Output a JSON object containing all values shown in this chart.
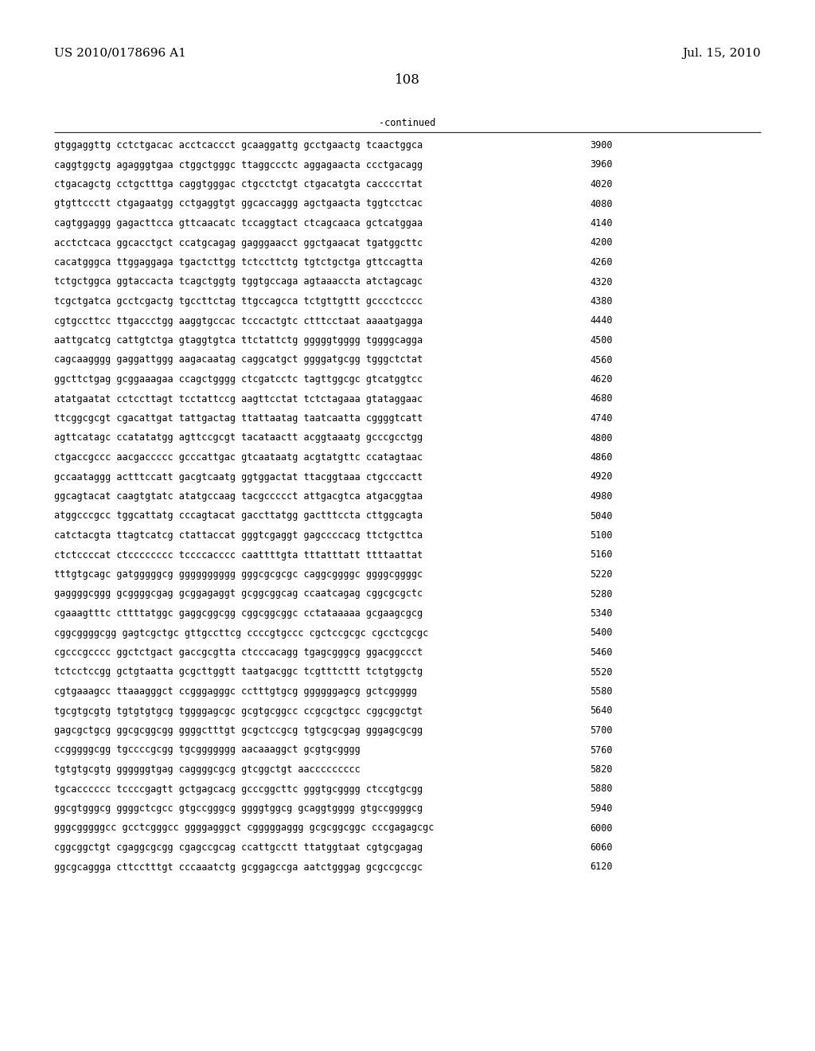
{
  "left_header": "US 2010/0178696 A1",
  "right_header": "Jul. 15, 2010",
  "page_number": "108",
  "continued_label": "-continued",
  "background_color": "#ffffff",
  "text_color": "#000000",
  "font_size_header": 11,
  "font_size_body": 8.5,
  "font_size_page": 12,
  "sequence_lines": [
    [
      "gtggaggttg cctctgacac acctcaccct gcaaggattg gcctgaactg tcaactggca",
      "3900"
    ],
    [
      "caggtggctg agagggtgaa ctggctgggc ttaggccctc aggagaacta ccctgacagg",
      "3960"
    ],
    [
      "ctgacagctg cctgctttga caggtgggac ctgcctctgt ctgacatgta caccccтtat",
      "4020"
    ],
    [
      "gtgttccctt ctgagaatgg cctgaggtgt ggcaccaggg agctgaacta tggtcctcac",
      "4080"
    ],
    [
      "cagtggaggg gagacttcca gttcaacatc tccaggtact ctcagcaaca gctcatggaa",
      "4140"
    ],
    [
      "acctctcaca ggcacctgct ccatgcagag gagggaacct ggctgaacat tgatggcttc",
      "4200"
    ],
    [
      "cacatgggca ttggaggaga tgactcttgg tctccttctg tgtctgctga gttccagtta",
      "4260"
    ],
    [
      "tctgctggca ggtaccacta tcagctggtg tggtgccaga agtaaaccta atctagcagc",
      "4320"
    ],
    [
      "tcgctgatca gcctcgactg tgccttctag ttgccagcca tctgttgttt gcccctcccc",
      "4380"
    ],
    [
      "cgtgccttcc ttgaccctgg aaggtgccac tcccactgtc ctttcctaat aaaatgagga",
      "4440"
    ],
    [
      "aattgcatcg cattgtctga gtaggtgtca ttctattctg gggggtgggg tggggcagga",
      "4500"
    ],
    [
      "cagcaagggg gaggattggg aagacaatag caggcatgct ggggatgcgg tgggctctat",
      "4560"
    ],
    [
      "ggcttctgag gcggaaagaa ccagctgggg ctcgatcctc tagttggcgc gtcatggtcc",
      "4620"
    ],
    [
      "atatgaatat cctccttagt tcctattccg aagttcctat tctctagaaa gtataggaac",
      "4680"
    ],
    [
      "ttcggcgcgt cgacattgat tattgactag ttattaatag taatcaatta cggggtcatt",
      "4740"
    ],
    [
      "agttcatagc ccatatatgg agttccgcgt tacataactt acggtaaatg gcccgcctgg",
      "4800"
    ],
    [
      "ctgaccgccc aacgaccccc gcccattgac gtcaataatg acgtatgttc ccatagtaac",
      "4860"
    ],
    [
      "gccaataggg actttccatt gacgtcaatg ggtggactat ttacggtaaa ctgcccactt",
      "4920"
    ],
    [
      "ggcagtacat caagtgtatc atatgccaag tacgccccct attgacgtca atgacggtaa",
      "4980"
    ],
    [
      "atggcccgcc tggcattatg cccagtacat gaccttatgg gactttccta cttggcagta",
      "5040"
    ],
    [
      "catctacgta ttagtcatcg ctattaccat gggtcgaggt gagccccacg ttctgcttca",
      "5100"
    ],
    [
      "ctctccccat ctcccccccc tccccacccc caattttgta tttatttatt ttttaattat",
      "5160"
    ],
    [
      "tttgtgcagc gatgggggcg gggggggggg gggcgcgcgc caggcggggc ggggcggggc",
      "5220"
    ],
    [
      "gaggggcggg gcggggcgag gcggagaggt gcggcggcag ccaatcagag cggcgcgctc",
      "5280"
    ],
    [
      "cgaaagtttc cttttatggc gaggcggcgg cggcggcggc cctataaaaa gcgaagcgcg",
      "5340"
    ],
    [
      "cggcggggcgg gagtcgctgc gttgccttcg ccccgtgccc cgctccgcgc cgcctcgcgc",
      "5400"
    ],
    [
      "cgcccgcccc ggctctgact gaccgcgtta ctcccacagg tgagcgggcg ggacggccct",
      "5460"
    ],
    [
      "tctcctccgg gctgtaatta gcgcttggtt taatgacggc tcgtttcttt tctgtggctg",
      "5520"
    ],
    [
      "cgtgaaagcc ttaaagggct ccgggagggc cctttgtgcg ggggggagcg gctcggggg",
      "5580"
    ],
    [
      "tgcgtgcgtg tgtgtgtgcg tggggagcgc gcgtgcggcc ccgcgctgcc cggcggctgt",
      "5640"
    ],
    [
      "gagcgctgcg ggcgcggcgg ggggctttgt gcgctccgcg tgtgcgcgag gggagcgcgg",
      "5700"
    ],
    [
      "ccgggggcgg tgccccgcgg tgcggggggg aacaaaggct gcgtgcgggg",
      "5760"
    ],
    [
      "tgtgtgcgtg ggggggtgag caggggcgcg gtcggctgt aaccccccccc",
      "5820"
    ],
    [
      "tgcacccccc tccccgagtt gctgagcacg gcccggcttc gggtgcgggg ctccgtgcgg",
      "5880"
    ],
    [
      "ggcgtgggcg ggggctcgcc gtgccgggcg ggggtggcg gcaggtgggg gtgccggggcg",
      "5940"
    ],
    [
      "gggcgggggcc gcctcgggcc ggggagggct cgggggaggg gcgcggcggc cccgagagcgc",
      "6000"
    ],
    [
      "cggcggctgt cgaggcgcgg cgagccgcag ccattgcctt ttatggtaat cgtgcgagag",
      "6060"
    ],
    [
      "ggcgcaggga cttcctttgt cccaaatctg gcggagccga aatctgggag gcgccgccgc",
      "6120"
    ]
  ]
}
